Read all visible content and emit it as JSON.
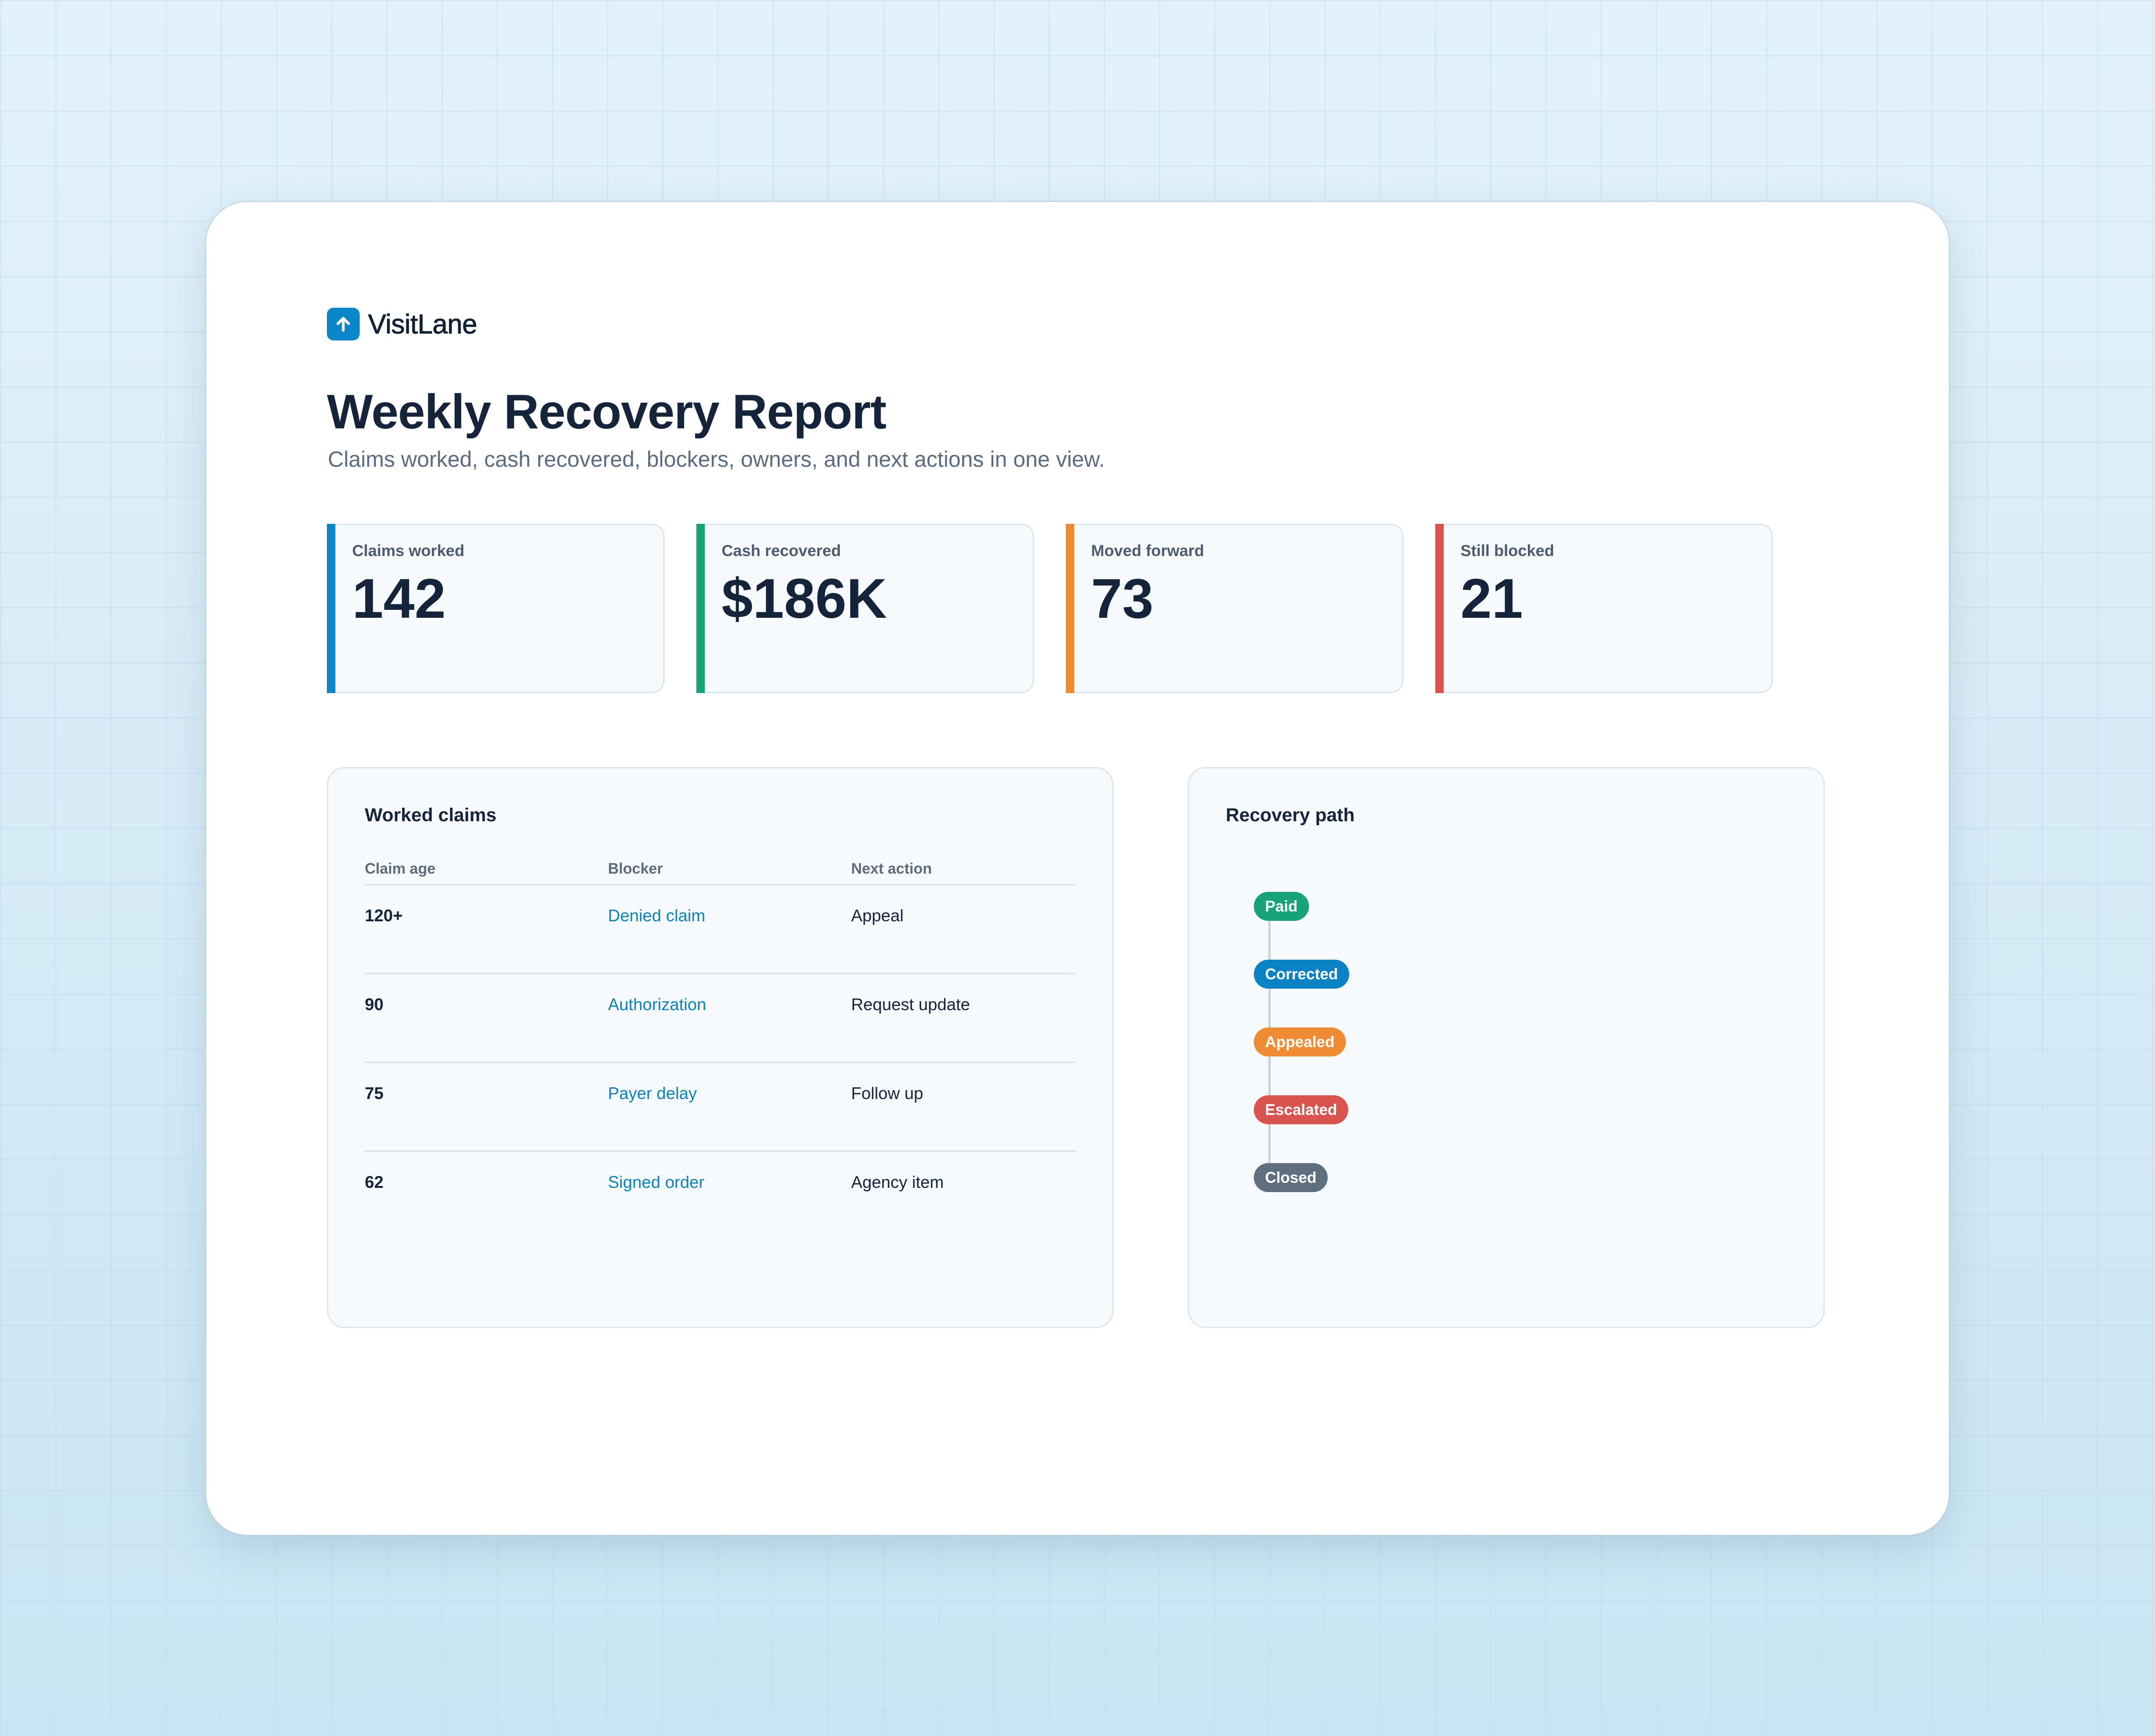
{
  "brand": {
    "name": "VisitLane",
    "logo_icon": "arrow-up-circle-icon",
    "color": "#0b86c9"
  },
  "page": {
    "title": "Weekly Recovery Report",
    "subtitle": "Claims worked, cash recovered, blockers, owners, and next actions in one view."
  },
  "kpis": [
    {
      "label": "Claims worked",
      "value": "142",
      "color": "#0b86c9"
    },
    {
      "label": "Cash recovered",
      "value": "$186K",
      "color": "#16a37a"
    },
    {
      "label": "Moved forward",
      "value": "73",
      "color": "#ef8c33"
    },
    {
      "label": "Still blocked",
      "value": "21",
      "color": "#d9534f"
    }
  ],
  "claims": {
    "title": "Worked claims",
    "headers": {
      "age": "Claim age",
      "blocker": "Blocker",
      "next_action": "Next action"
    },
    "rows": [
      {
        "age": "120+",
        "blocker": "Denied claim",
        "next_action": "Appeal"
      },
      {
        "age": "90",
        "blocker": "Authorization",
        "next_action": "Request update"
      },
      {
        "age": "75",
        "blocker": "Payer delay",
        "next_action": "Follow up"
      },
      {
        "age": "62",
        "blocker": "Signed order",
        "next_action": "Agency item"
      }
    ]
  },
  "recovery_path": {
    "title": "Recovery path",
    "steps": [
      {
        "label": "Paid",
        "color": "#17a278"
      },
      {
        "label": "Corrected",
        "color": "#0b82c4"
      },
      {
        "label": "Appealed",
        "color": "#ef8c33"
      },
      {
        "label": "Escalated",
        "color": "#d9534f"
      },
      {
        "label": "Closed",
        "color": "#5f6f80"
      }
    ]
  }
}
